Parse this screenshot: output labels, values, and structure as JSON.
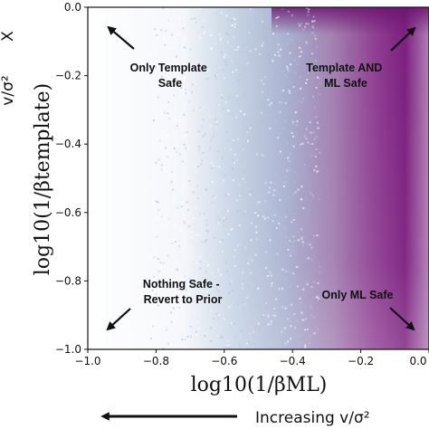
{
  "chart_data": {
    "type": "heatmap",
    "xlabel": "log10(1/βML)",
    "ylabel": "log10(1/βtemplate)",
    "xlim": [
      -1.0,
      0.0
    ],
    "ylim": [
      -1.0,
      0.0
    ],
    "x_ticks": [
      "−1.0",
      "−0.8",
      "−0.6",
      "−0.4",
      "−0.2",
      "0.0"
    ],
    "y_ticks": [
      "0.0",
      "−0.2",
      "−0.4",
      "−0.6",
      "−0.8",
      "−1.0"
    ],
    "x_tick_values": [
      -1.0,
      -0.8,
      -0.6,
      -0.4,
      -0.2,
      0.0
    ],
    "y_tick_values": [
      0.0,
      -0.2,
      -0.4,
      -0.6,
      -0.8,
      -1.0
    ],
    "colormap": [
      "#ffffff",
      "#c9d6e6",
      "#9aa5c8",
      "#8a4f9a",
      "#7a1f7e"
    ],
    "annotations": [
      {
        "lines": [
          "Only Template",
          "Safe"
        ],
        "arrow": "up-left"
      },
      {
        "lines": [
          "Template AND",
          "ML Safe"
        ],
        "arrow": "up-right"
      },
      {
        "lines": [
          "Nothing Safe -",
          "Revert to Prior"
        ],
        "arrow": "down-left"
      },
      {
        "lines": [
          "Only ML Safe"
        ],
        "arrow": "down-right"
      }
    ],
    "bottom_caption": "Increasing v/σ²",
    "bottom_caption_arrow": "left",
    "left_fragments": [
      "X",
      "v/σ²"
    ]
  }
}
